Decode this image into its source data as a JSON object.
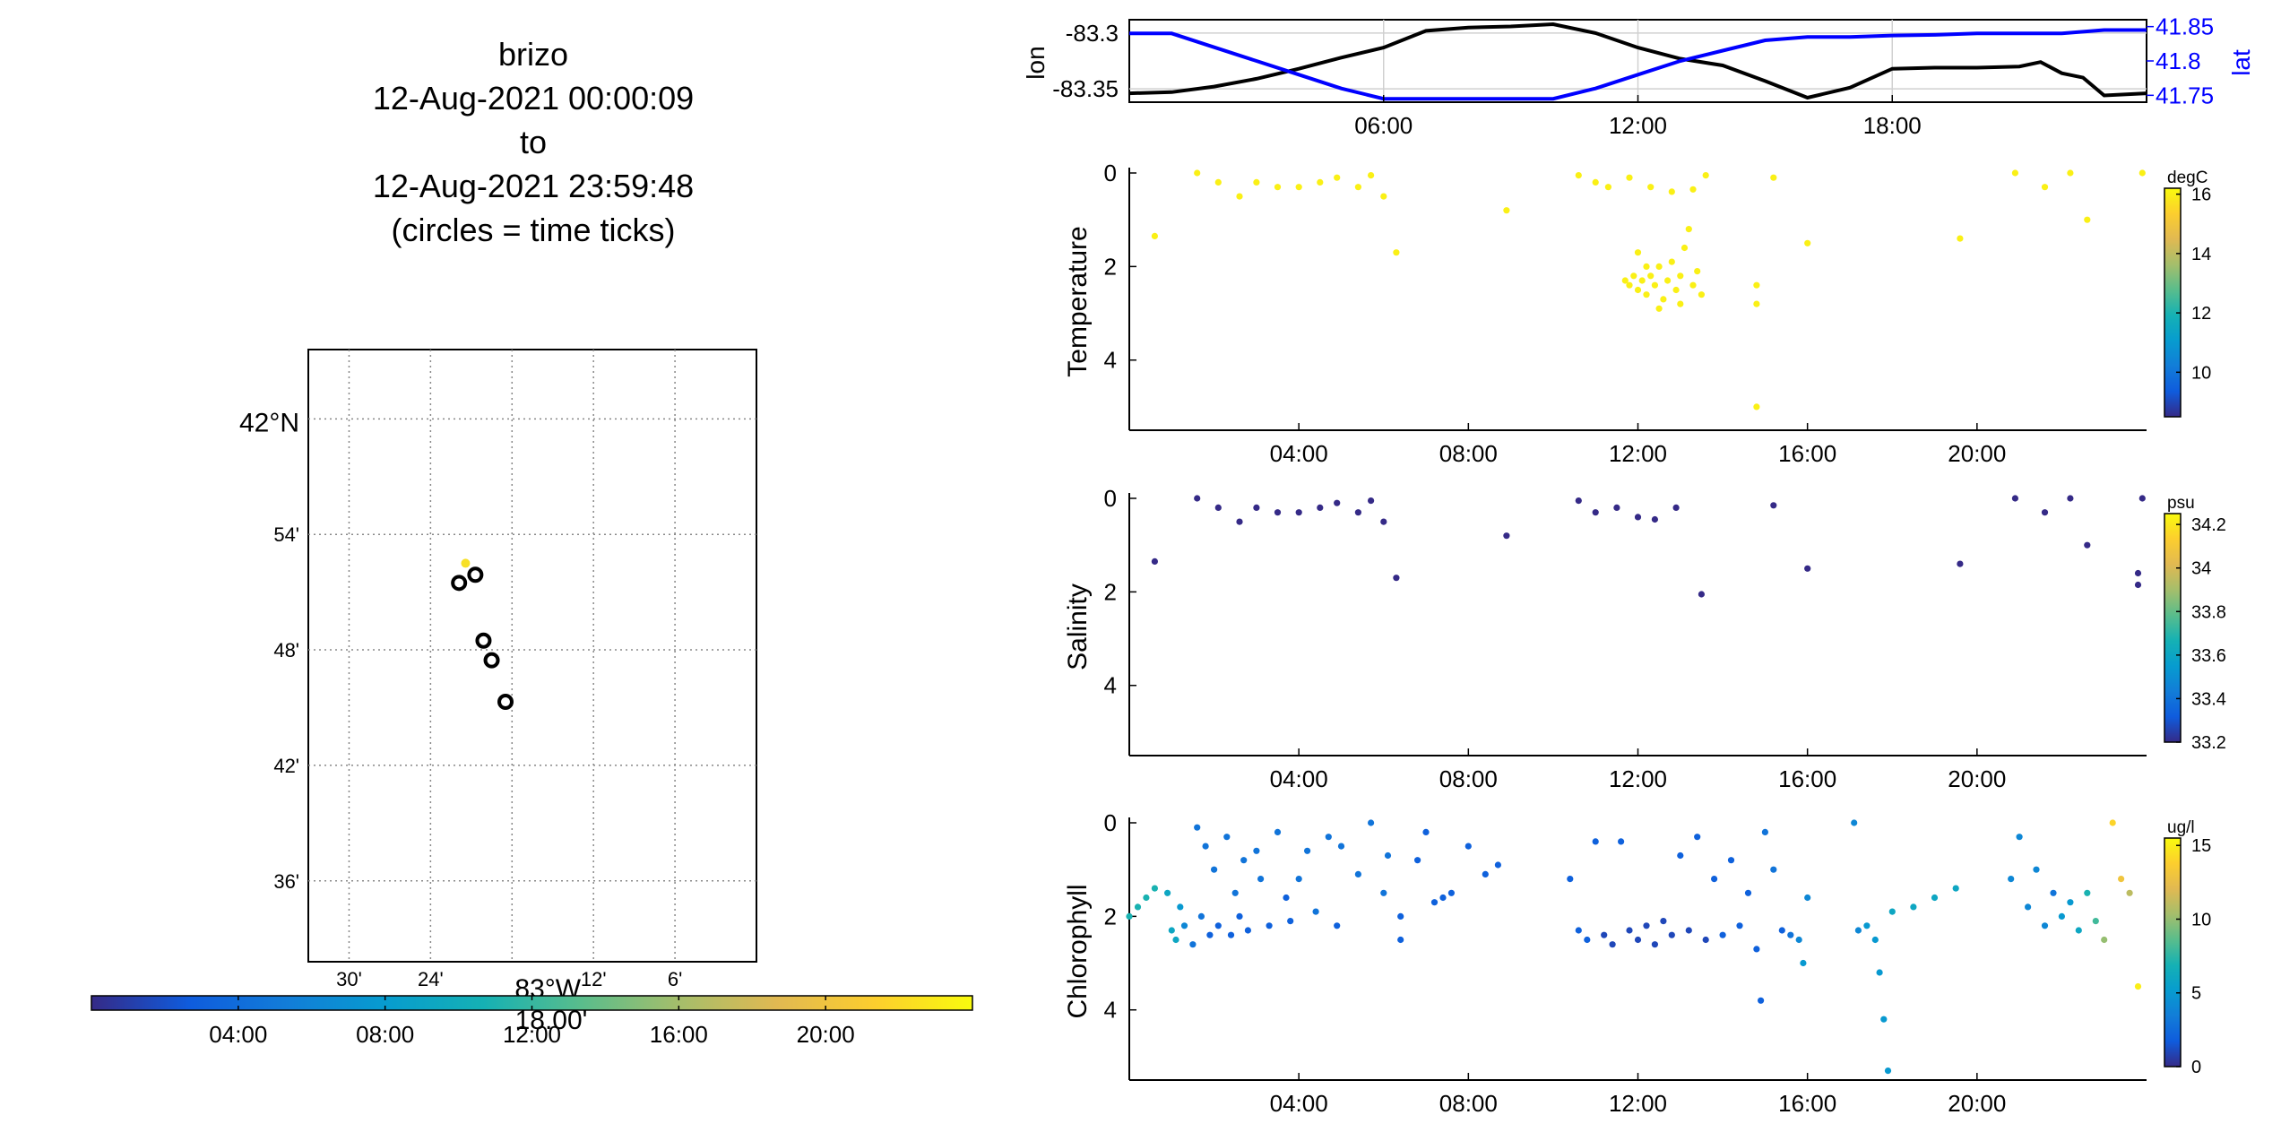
{
  "title_lines": [
    "brizo",
    "12-Aug-2021 00:00:09",
    "to",
    "12-Aug-2021 23:59:48",
    "(circles = time ticks)"
  ],
  "map": {
    "lat_labels": [
      "42°N",
      "54'",
      "48'",
      "42'",
      "36'"
    ],
    "lon_labels": [
      "30'",
      "24'",
      "83°W",
      "12'",
      "6'"
    ],
    "lat_ticks": [
      42.0,
      41.9,
      41.8,
      41.7,
      41.6
    ],
    "lon_ticks": [
      -83.5,
      -83.4,
      -83.3,
      -83.2,
      -83.1
    ],
    "lon_range": [
      -83.55,
      -83.0
    ],
    "lat_range": [
      41.53,
      42.06
    ],
    "colorbar_ticks": [
      "04:00",
      "08:00",
      "12:00",
      "16:00",
      "20:00"
    ],
    "colorbar_overlay_label": "18.00'",
    "track_point_color": "#f7e026",
    "time_tick_circles": [
      {
        "lon": -83.365,
        "lat": 41.858
      },
      {
        "lon": -83.345,
        "lat": 41.865
      },
      {
        "lon": -83.335,
        "lat": 41.808
      },
      {
        "lon": -83.325,
        "lat": 41.791
      },
      {
        "lon": -83.308,
        "lat": 41.755
      }
    ],
    "track_point": {
      "lon": -83.357,
      "lat": 41.875
    }
  },
  "chart_data": [
    {
      "type": "line",
      "ylabel_left": "lon",
      "ylabel_right": "lat",
      "x_ticks": [
        "06:00",
        "12:00",
        "18:00"
      ],
      "x_range_hours": [
        0,
        24
      ],
      "y_left_ticks": [
        "-83.3",
        "-83.35"
      ],
      "y_left_range": [
        -83.362,
        -83.288
      ],
      "y_right_ticks": [
        "41.85",
        "41.8",
        "41.75"
      ],
      "y_right_range": [
        41.74,
        41.86
      ],
      "series": [
        {
          "name": "lon",
          "color": "#000000",
          "axis": "left",
          "x": [
            0,
            1,
            2,
            3,
            4,
            5,
            6,
            7,
            8,
            9,
            10,
            11,
            12,
            13,
            14,
            15,
            16,
            17,
            18,
            19,
            20,
            21,
            21.5,
            22,
            22.5,
            23,
            24
          ],
          "y": [
            -83.354,
            -83.353,
            -83.348,
            -83.341,
            -83.332,
            -83.322,
            -83.313,
            -83.298,
            -83.295,
            -83.294,
            -83.292,
            -83.3,
            -83.313,
            -83.323,
            -83.329,
            -83.343,
            -83.358,
            -83.349,
            -83.332,
            -83.331,
            -83.331,
            -83.33,
            -83.326,
            -83.336,
            -83.34,
            -83.356,
            -83.354
          ]
        },
        {
          "name": "lat",
          "color": "#0000ff",
          "axis": "right",
          "x": [
            0,
            1,
            2,
            3,
            4,
            5,
            6,
            7,
            8,
            9,
            10,
            11,
            12,
            13,
            14,
            15,
            16,
            17,
            18,
            19,
            20,
            21,
            22,
            23,
            24
          ],
          "y": [
            41.84,
            41.84,
            41.82,
            41.8,
            41.78,
            41.76,
            41.745,
            41.745,
            41.745,
            41.745,
            41.745,
            41.76,
            41.78,
            41.8,
            41.815,
            41.83,
            41.835,
            41.835,
            41.837,
            41.838,
            41.84,
            41.84,
            41.84,
            41.845,
            41.845
          ]
        }
      ]
    },
    {
      "type": "scatter",
      "ylabel": "Temperature",
      "units": "degC",
      "x_ticks": [
        "04:00",
        "08:00",
        "12:00",
        "16:00",
        "20:00"
      ],
      "y_ticks": [
        "0",
        "2",
        "4"
      ],
      "y_range": [
        0,
        5.5
      ],
      "colorbar_ticks": [
        "10",
        "12",
        "14",
        "16"
      ],
      "colorbar_range": [
        8.5,
        16.2
      ],
      "points": [
        [
          0.6,
          1.35,
          16
        ],
        [
          1.6,
          0,
          16
        ],
        [
          2.1,
          0.2,
          16
        ],
        [
          2.6,
          0.5,
          16
        ],
        [
          3.0,
          0.2,
          16
        ],
        [
          3.5,
          0.3,
          16
        ],
        [
          4.0,
          0.3,
          16
        ],
        [
          4.5,
          0.2,
          16
        ],
        [
          4.9,
          0.1,
          16
        ],
        [
          5.4,
          0.3,
          16
        ],
        [
          5.7,
          0.05,
          16
        ],
        [
          6.0,
          0.5,
          16
        ],
        [
          6.3,
          1.7,
          16
        ],
        [
          8.9,
          0.8,
          16
        ],
        [
          10.6,
          0.05,
          16
        ],
        [
          11.0,
          0.2,
          16
        ],
        [
          11.3,
          0.3,
          16
        ],
        [
          11.8,
          0.1,
          16
        ],
        [
          12.3,
          0.3,
          16
        ],
        [
          12.8,
          0.4,
          16
        ],
        [
          13.3,
          0.35,
          16
        ],
        [
          13.6,
          0.05,
          16
        ],
        [
          11.7,
          2.3,
          16
        ],
        [
          11.8,
          2.4,
          16
        ],
        [
          11.9,
          2.2,
          16
        ],
        [
          12.0,
          2.5,
          16
        ],
        [
          12.1,
          2.3,
          16
        ],
        [
          12.2,
          2.6,
          16
        ],
        [
          12.3,
          2.2,
          16
        ],
        [
          12.4,
          2.4,
          16
        ],
        [
          12.5,
          2.0,
          16
        ],
        [
          12.6,
          2.7,
          16
        ],
        [
          12.7,
          2.3,
          16
        ],
        [
          12.8,
          1.9,
          16
        ],
        [
          12.9,
          2.5,
          16
        ],
        [
          13.0,
          2.2,
          16
        ],
        [
          13.1,
          1.6,
          16
        ],
        [
          13.2,
          1.2,
          16
        ],
        [
          13.3,
          2.4,
          16
        ],
        [
          13.4,
          2.1,
          16
        ],
        [
          13.5,
          2.6,
          16
        ],
        [
          12.0,
          1.7,
          16
        ],
        [
          12.5,
          2.9,
          16
        ],
        [
          12.2,
          2.0,
          16
        ],
        [
          13.0,
          2.8,
          16
        ],
        [
          14.8,
          2.4,
          16
        ],
        [
          14.8,
          2.8,
          16
        ],
        [
          14.8,
          5.0,
          16
        ],
        [
          15.2,
          0.1,
          16
        ],
        [
          16.0,
          1.5,
          16
        ],
        [
          19.6,
          1.4,
          16
        ],
        [
          20.9,
          0.0,
          16
        ],
        [
          21.6,
          0.3,
          16
        ],
        [
          22.2,
          0.0,
          16
        ],
        [
          22.6,
          1.0,
          16
        ],
        [
          23.9,
          0.0,
          16
        ]
      ]
    },
    {
      "type": "scatter",
      "ylabel": "Salinity",
      "units": "psu",
      "x_ticks": [
        "04:00",
        "08:00",
        "12:00",
        "16:00",
        "20:00"
      ],
      "y_ticks": [
        "0",
        "2",
        "4"
      ],
      "y_range": [
        0,
        5.5
      ],
      "colorbar_ticks": [
        "33.2",
        "33.4",
        "33.6",
        "33.8",
        "34",
        "34.2"
      ],
      "colorbar_range": [
        33.2,
        34.25
      ],
      "points": [
        [
          0.6,
          1.35,
          33.2
        ],
        [
          1.6,
          0,
          33.2
        ],
        [
          2.1,
          0.2,
          33.2
        ],
        [
          2.6,
          0.5,
          33.2
        ],
        [
          3.0,
          0.2,
          33.2
        ],
        [
          3.5,
          0.3,
          33.2
        ],
        [
          4.0,
          0.3,
          33.2
        ],
        [
          4.5,
          0.2,
          33.2
        ],
        [
          4.9,
          0.1,
          33.2
        ],
        [
          5.4,
          0.3,
          33.2
        ],
        [
          5.7,
          0.05,
          33.2
        ],
        [
          6.0,
          0.5,
          33.2
        ],
        [
          6.3,
          1.7,
          33.2
        ],
        [
          8.9,
          0.8,
          33.2
        ],
        [
          10.6,
          0.05,
          33.2
        ],
        [
          11.0,
          0.3,
          33.2
        ],
        [
          11.5,
          0.2,
          33.2
        ],
        [
          12.0,
          0.4,
          33.2
        ],
        [
          12.4,
          0.45,
          33.2
        ],
        [
          12.9,
          0.2,
          33.2
        ],
        [
          13.5,
          2.05,
          33.2
        ],
        [
          15.2,
          0.15,
          33.2
        ],
        [
          16.0,
          1.5,
          33.2
        ],
        [
          19.6,
          1.4,
          33.2
        ],
        [
          20.9,
          0.0,
          33.2
        ],
        [
          21.6,
          0.3,
          33.2
        ],
        [
          22.2,
          0.0,
          33.2
        ],
        [
          22.6,
          1.0,
          33.2
        ],
        [
          23.9,
          0.0,
          33.2
        ],
        [
          23.8,
          1.6,
          33.2
        ],
        [
          23.8,
          1.85,
          33.2
        ]
      ]
    },
    {
      "type": "scatter",
      "ylabel": "Chlorophyll",
      "units": "ug/l",
      "x_ticks": [
        "04:00",
        "08:00",
        "12:00",
        "16:00",
        "20:00"
      ],
      "y_ticks": [
        "0",
        "2",
        "4"
      ],
      "y_range": [
        0,
        5.5
      ],
      "colorbar_ticks": [
        "0",
        "5",
        "10",
        "15"
      ],
      "colorbar_range": [
        0,
        15.5
      ],
      "points": [
        [
          0.0,
          2.0,
          7
        ],
        [
          0.2,
          1.8,
          7
        ],
        [
          0.4,
          1.6,
          7
        ],
        [
          0.6,
          1.4,
          7
        ],
        [
          0.9,
          1.5,
          6
        ],
        [
          1.0,
          2.3,
          6
        ],
        [
          1.1,
          2.5,
          6
        ],
        [
          1.2,
          1.8,
          5
        ],
        [
          1.3,
          2.2,
          4
        ],
        [
          1.5,
          2.6,
          3
        ],
        [
          1.6,
          0.1,
          3
        ],
        [
          1.7,
          2.0,
          3
        ],
        [
          1.8,
          0.5,
          3
        ],
        [
          1.9,
          2.4,
          2
        ],
        [
          2.0,
          1.0,
          3
        ],
        [
          2.1,
          2.2,
          2
        ],
        [
          2.3,
          0.3,
          3
        ],
        [
          2.4,
          2.4,
          2
        ],
        [
          2.5,
          1.5,
          3
        ],
        [
          2.6,
          2.0,
          2
        ],
        [
          2.7,
          0.8,
          3
        ],
        [
          2.8,
          2.3,
          2
        ],
        [
          3.0,
          0.6,
          3
        ],
        [
          3.1,
          1.2,
          3
        ],
        [
          3.3,
          2.2,
          2
        ],
        [
          3.5,
          0.2,
          3
        ],
        [
          3.7,
          1.6,
          2
        ],
        [
          3.8,
          2.1,
          2
        ],
        [
          4.0,
          1.2,
          3
        ],
        [
          4.2,
          0.6,
          3
        ],
        [
          4.4,
          1.9,
          3
        ],
        [
          4.7,
          0.3,
          3
        ],
        [
          4.9,
          2.2,
          2
        ],
        [
          5.0,
          0.5,
          3
        ],
        [
          5.4,
          1.1,
          3
        ],
        [
          5.7,
          0.0,
          3
        ],
        [
          6.0,
          1.5,
          3
        ],
        [
          6.1,
          0.7,
          3
        ],
        [
          6.4,
          2.0,
          2
        ],
        [
          6.4,
          2.5,
          2
        ],
        [
          6.8,
          0.8,
          2
        ],
        [
          7.0,
          0.2,
          2
        ],
        [
          7.2,
          1.7,
          2
        ],
        [
          7.4,
          1.6,
          2
        ],
        [
          7.6,
          1.5,
          2
        ],
        [
          8.0,
          0.5,
          2
        ],
        [
          8.4,
          1.1,
          2
        ],
        [
          8.7,
          0.9,
          2
        ],
        [
          10.4,
          1.2,
          2
        ],
        [
          10.6,
          2.3,
          2
        ],
        [
          10.8,
          2.5,
          2
        ],
        [
          11.0,
          0.4,
          2
        ],
        [
          11.2,
          2.4,
          1
        ],
        [
          11.4,
          2.6,
          1
        ],
        [
          11.6,
          0.4,
          2
        ],
        [
          11.8,
          2.3,
          1
        ],
        [
          12.0,
          2.5,
          1
        ],
        [
          12.2,
          2.2,
          1
        ],
        [
          12.4,
          2.6,
          1
        ],
        [
          12.6,
          2.1,
          1
        ],
        [
          12.8,
          2.4,
          1
        ],
        [
          13.0,
          0.7,
          2
        ],
        [
          13.2,
          2.3,
          1
        ],
        [
          13.4,
          0.3,
          2
        ],
        [
          13.6,
          2.5,
          1
        ],
        [
          13.8,
          1.2,
          2
        ],
        [
          14.0,
          2.4,
          2
        ],
        [
          14.2,
          0.8,
          2
        ],
        [
          14.4,
          2.2,
          2
        ],
        [
          14.6,
          1.5,
          2
        ],
        [
          14.8,
          2.7,
          2
        ],
        [
          14.9,
          3.8,
          2
        ],
        [
          15.0,
          0.2,
          3
        ],
        [
          15.2,
          1.0,
          3
        ],
        [
          15.4,
          2.3,
          2
        ],
        [
          15.6,
          2.4,
          3
        ],
        [
          15.8,
          2.5,
          4
        ],
        [
          15.9,
          3.0,
          5
        ],
        [
          16.0,
          1.6,
          4
        ],
        [
          17.1,
          0.0,
          4
        ],
        [
          17.2,
          2.3,
          4
        ],
        [
          17.4,
          2.2,
          5
        ],
        [
          17.6,
          2.5,
          5
        ],
        [
          17.7,
          3.2,
          5
        ],
        [
          17.8,
          4.2,
          5
        ],
        [
          17.9,
          5.3,
          5
        ],
        [
          18.0,
          1.9,
          6
        ],
        [
          18.5,
          1.8,
          6
        ],
        [
          19.0,
          1.6,
          6
        ],
        [
          19.5,
          1.4,
          6
        ],
        [
          20.8,
          1.2,
          4
        ],
        [
          21.0,
          0.3,
          4
        ],
        [
          21.2,
          1.8,
          4
        ],
        [
          21.4,
          1.0,
          4
        ],
        [
          21.6,
          2.2,
          4
        ],
        [
          21.8,
          1.5,
          3
        ],
        [
          22.0,
          2.0,
          5
        ],
        [
          22.2,
          1.7,
          5
        ],
        [
          22.4,
          2.3,
          6
        ],
        [
          22.6,
          1.5,
          7
        ],
        [
          22.8,
          2.1,
          8
        ],
        [
          23.0,
          2.5,
          10
        ],
        [
          23.2,
          0.0,
          14
        ],
        [
          23.4,
          1.2,
          13
        ],
        [
          23.6,
          1.5,
          11
        ],
        [
          23.8,
          3.5,
          15
        ]
      ]
    }
  ]
}
